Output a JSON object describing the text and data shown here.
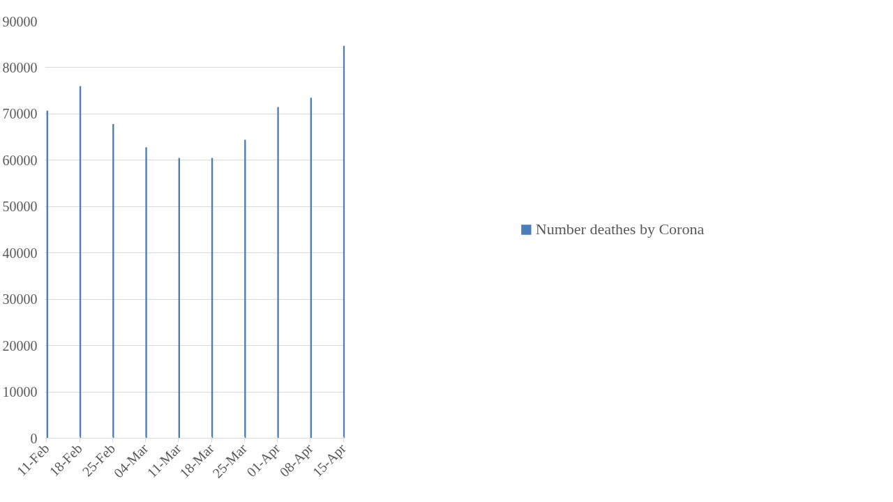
{
  "chart_data": {
    "type": "bar",
    "categories": [
      "11-Feb",
      "18-Feb",
      "25-Feb",
      "04-Mar",
      "11-Mar",
      "18-Mar",
      "25-Mar",
      "01-Apr",
      "08-Apr",
      "15-Apr"
    ],
    "series": [
      {
        "name": "Number deathes by Corona",
        "color": "#4a7ebb",
        "values": [
          70700,
          76000,
          67800,
          62800,
          60500,
          60500,
          64400,
          71500,
          73500,
          84700
        ]
      }
    ],
    "ylim": [
      0,
      90000
    ],
    "yticks": [
      0,
      10000,
      20000,
      30000,
      40000,
      50000,
      60000,
      70000,
      80000,
      90000
    ],
    "grid": "y",
    "legend": "right"
  }
}
